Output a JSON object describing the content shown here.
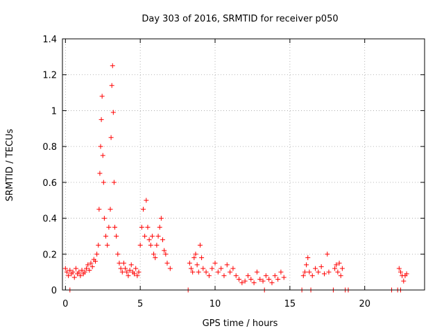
{
  "chart_data": {
    "type": "scatter",
    "title": "Day 303 of 2016, SRMTID for receiver p050",
    "xlabel": "GPS time / hours",
    "ylabel": "SRMTID / TECUs",
    "xlim": [
      -0.2,
      24
    ],
    "ylim": [
      0,
      1.4
    ],
    "xticks": [
      0,
      5,
      10,
      15,
      20
    ],
    "yticks": [
      0,
      0.2,
      0.4,
      0.6,
      0.8,
      1,
      1.2,
      1.4
    ],
    "xtick_labels": [
      "0",
      "5",
      "10",
      "15",
      "20"
    ],
    "ytick_labels": [
      "0",
      "0.2",
      "0.4",
      "0.6",
      "0.8",
      "1",
      "1.2",
      "1.4"
    ],
    "grid": true,
    "marker": "plus",
    "color": "#ff0000",
    "series": [
      {
        "name": "p050",
        "points": [
          [
            0.0,
            0.12
          ],
          [
            0.1,
            0.1
          ],
          [
            0.2,
            0.08
          ],
          [
            0.3,
            0.11
          ],
          [
            0.4,
            0.09
          ],
          [
            0.5,
            0.1
          ],
          [
            0.6,
            0.07
          ],
          [
            0.7,
            0.12
          ],
          [
            0.8,
            0.09
          ],
          [
            0.9,
            0.1
          ],
          [
            1.0,
            0.08
          ],
          [
            1.1,
            0.11
          ],
          [
            1.2,
            0.09
          ],
          [
            1.3,
            0.1
          ],
          [
            1.4,
            0.12
          ],
          [
            1.5,
            0.14
          ],
          [
            1.6,
            0.11
          ],
          [
            1.7,
            0.15
          ],
          [
            1.8,
            0.13
          ],
          [
            1.9,
            0.17
          ],
          [
            2.0,
            0.16
          ],
          [
            2.1,
            0.2
          ],
          [
            2.2,
            0.25
          ],
          [
            2.25,
            0.45
          ],
          [
            2.3,
            0.65
          ],
          [
            2.35,
            0.8
          ],
          [
            2.4,
            0.95
          ],
          [
            2.45,
            1.08
          ],
          [
            2.5,
            0.75
          ],
          [
            2.55,
            0.6
          ],
          [
            2.6,
            0.4
          ],
          [
            2.7,
            0.3
          ],
          [
            2.8,
            0.25
          ],
          [
            2.9,
            0.35
          ],
          [
            3.0,
            0.45
          ],
          [
            3.05,
            0.85
          ],
          [
            3.1,
            1.14
          ],
          [
            3.15,
            1.25
          ],
          [
            3.2,
            0.99
          ],
          [
            3.25,
            0.6
          ],
          [
            3.3,
            0.35
          ],
          [
            3.4,
            0.3
          ],
          [
            3.5,
            0.2
          ],
          [
            3.6,
            0.15
          ],
          [
            3.7,
            0.12
          ],
          [
            3.8,
            0.1
          ],
          [
            3.9,
            0.15
          ],
          [
            4.0,
            0.12
          ],
          [
            4.1,
            0.1
          ],
          [
            4.2,
            0.08
          ],
          [
            4.3,
            0.11
          ],
          [
            4.4,
            0.14
          ],
          [
            4.5,
            0.1
          ],
          [
            4.6,
            0.09
          ],
          [
            4.7,
            0.12
          ],
          [
            4.8,
            0.08
          ],
          [
            4.9,
            0.1
          ],
          [
            5.0,
            0.25
          ],
          [
            5.1,
            0.35
          ],
          [
            5.2,
            0.45
          ],
          [
            5.3,
            0.3
          ],
          [
            5.4,
            0.5
          ],
          [
            5.5,
            0.35
          ],
          [
            5.6,
            0.28
          ],
          [
            5.7,
            0.25
          ],
          [
            5.8,
            0.3
          ],
          [
            5.9,
            0.2
          ],
          [
            6.0,
            0.18
          ],
          [
            6.1,
            0.25
          ],
          [
            6.2,
            0.3
          ],
          [
            6.3,
            0.35
          ],
          [
            6.4,
            0.4
          ],
          [
            6.5,
            0.28
          ],
          [
            6.6,
            0.22
          ],
          [
            6.7,
            0.2
          ],
          [
            6.8,
            0.15
          ],
          [
            7.0,
            0.12
          ],
          [
            8.3,
            0.15
          ],
          [
            8.4,
            0.12
          ],
          [
            8.5,
            0.1
          ],
          [
            8.6,
            0.18
          ],
          [
            8.7,
            0.2
          ],
          [
            8.8,
            0.14
          ],
          [
            8.9,
            0.1
          ],
          [
            9.0,
            0.25
          ],
          [
            9.1,
            0.18
          ],
          [
            9.2,
            0.12
          ],
          [
            9.4,
            0.1
          ],
          [
            9.6,
            0.08
          ],
          [
            9.8,
            0.12
          ],
          [
            10.0,
            0.15
          ],
          [
            10.2,
            0.1
          ],
          [
            10.4,
            0.12
          ],
          [
            10.6,
            0.08
          ],
          [
            10.8,
            0.14
          ],
          [
            11.0,
            0.1
          ],
          [
            11.2,
            0.12
          ],
          [
            11.4,
            0.08
          ],
          [
            11.6,
            0.06
          ],
          [
            11.8,
            0.04
          ],
          [
            12.0,
            0.05
          ],
          [
            12.2,
            0.08
          ],
          [
            12.4,
            0.06
          ],
          [
            12.6,
            0.04
          ],
          [
            12.8,
            0.1
          ],
          [
            13.0,
            0.06
          ],
          [
            13.2,
            0.05
          ],
          [
            13.4,
            0.08
          ],
          [
            13.6,
            0.06
          ],
          [
            13.8,
            0.04
          ],
          [
            14.0,
            0.08
          ],
          [
            14.2,
            0.06
          ],
          [
            14.4,
            0.1
          ],
          [
            14.6,
            0.07
          ],
          [
            15.9,
            0.08
          ],
          [
            16.0,
            0.1
          ],
          [
            16.1,
            0.14
          ],
          [
            16.2,
            0.18
          ],
          [
            16.3,
            0.1
          ],
          [
            16.5,
            0.08
          ],
          [
            16.7,
            0.12
          ],
          [
            16.9,
            0.1
          ],
          [
            17.1,
            0.13
          ],
          [
            17.3,
            0.09
          ],
          [
            17.5,
            0.2
          ],
          [
            17.6,
            0.1
          ],
          [
            18.0,
            0.12
          ],
          [
            18.1,
            0.14
          ],
          [
            18.2,
            0.1
          ],
          [
            18.3,
            0.15
          ],
          [
            18.4,
            0.08
          ],
          [
            18.5,
            0.12
          ],
          [
            22.3,
            0.12
          ],
          [
            22.4,
            0.1
          ],
          [
            22.5,
            0.08
          ],
          [
            22.6,
            0.05
          ],
          [
            22.7,
            0.08
          ],
          [
            22.8,
            0.09
          ],
          [
            0.3,
            0.0
          ],
          [
            8.2,
            0.0
          ],
          [
            13.3,
            0.0
          ],
          [
            15.8,
            0.0
          ],
          [
            16.4,
            0.0
          ],
          [
            17.9,
            0.0
          ],
          [
            18.7,
            0.0
          ],
          [
            18.9,
            0.0
          ],
          [
            21.8,
            0.0
          ],
          [
            22.2,
            0.0
          ],
          [
            22.4,
            0.0
          ]
        ]
      }
    ]
  }
}
